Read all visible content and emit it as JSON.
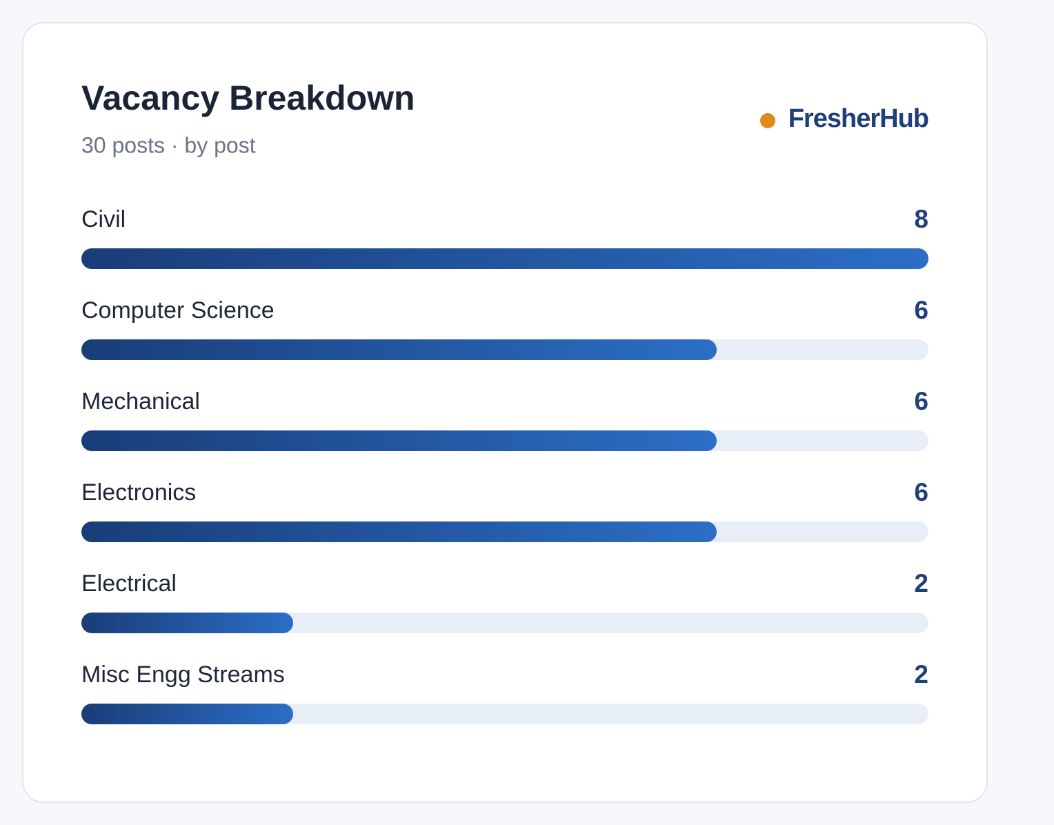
{
  "chart_data": {
    "type": "bar",
    "orientation": "horizontal",
    "title": "Vacancy Breakdown",
    "subtitle": "30 posts · by post",
    "brand": "FresherHub",
    "categories": [
      "Civil",
      "Computer Science",
      "Mechanical",
      "Electronics",
      "Electrical",
      "Misc Engg Streams"
    ],
    "values": [
      8,
      6,
      6,
      6,
      2,
      2
    ],
    "xlim": [
      0,
      8
    ]
  }
}
